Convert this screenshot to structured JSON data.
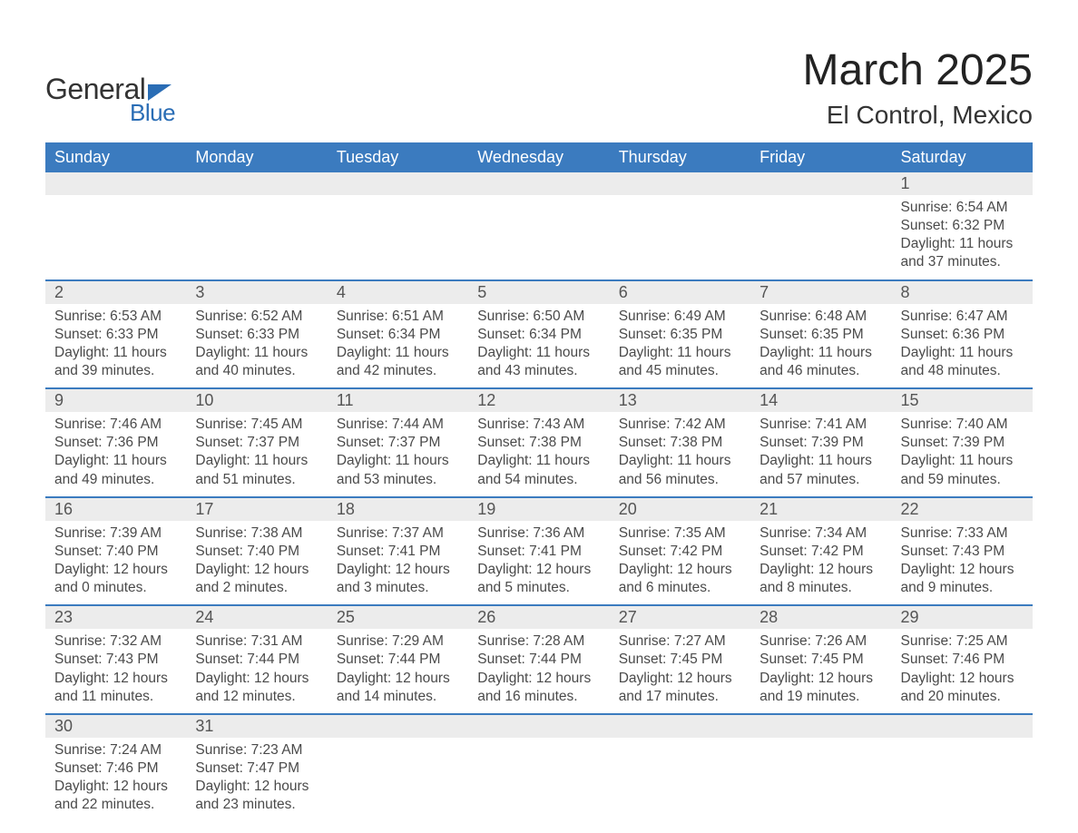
{
  "brand": {
    "general": "General",
    "blue": "Blue"
  },
  "title": {
    "month": "March 2025",
    "location": "El Control, Mexico"
  },
  "colors": {
    "header_bg": "#3b7bbf",
    "header_text": "#ffffff",
    "daynum_bg": "#ececec",
    "body_text": "#4a4a4a",
    "rule": "#3b7bbf",
    "brand_blue": "#2a6db5"
  },
  "days": [
    "Sunday",
    "Monday",
    "Tuesday",
    "Wednesday",
    "Thursday",
    "Friday",
    "Saturday"
  ],
  "weeks": [
    [
      null,
      null,
      null,
      null,
      null,
      null,
      {
        "n": "1",
        "sr": "6:54 AM",
        "ss": "6:32 PM",
        "dh": "11",
        "dm": "37"
      }
    ],
    [
      {
        "n": "2",
        "sr": "6:53 AM",
        "ss": "6:33 PM",
        "dh": "11",
        "dm": "39"
      },
      {
        "n": "3",
        "sr": "6:52 AM",
        "ss": "6:33 PM",
        "dh": "11",
        "dm": "40"
      },
      {
        "n": "4",
        "sr": "6:51 AM",
        "ss": "6:34 PM",
        "dh": "11",
        "dm": "42"
      },
      {
        "n": "5",
        "sr": "6:50 AM",
        "ss": "6:34 PM",
        "dh": "11",
        "dm": "43"
      },
      {
        "n": "6",
        "sr": "6:49 AM",
        "ss": "6:35 PM",
        "dh": "11",
        "dm": "45"
      },
      {
        "n": "7",
        "sr": "6:48 AM",
        "ss": "6:35 PM",
        "dh": "11",
        "dm": "46"
      },
      {
        "n": "8",
        "sr": "6:47 AM",
        "ss": "6:36 PM",
        "dh": "11",
        "dm": "48"
      }
    ],
    [
      {
        "n": "9",
        "sr": "7:46 AM",
        "ss": "7:36 PM",
        "dh": "11",
        "dm": "49"
      },
      {
        "n": "10",
        "sr": "7:45 AM",
        "ss": "7:37 PM",
        "dh": "11",
        "dm": "51"
      },
      {
        "n": "11",
        "sr": "7:44 AM",
        "ss": "7:37 PM",
        "dh": "11",
        "dm": "53"
      },
      {
        "n": "12",
        "sr": "7:43 AM",
        "ss": "7:38 PM",
        "dh": "11",
        "dm": "54"
      },
      {
        "n": "13",
        "sr": "7:42 AM",
        "ss": "7:38 PM",
        "dh": "11",
        "dm": "56"
      },
      {
        "n": "14",
        "sr": "7:41 AM",
        "ss": "7:39 PM",
        "dh": "11",
        "dm": "57"
      },
      {
        "n": "15",
        "sr": "7:40 AM",
        "ss": "7:39 PM",
        "dh": "11",
        "dm": "59"
      }
    ],
    [
      {
        "n": "16",
        "sr": "7:39 AM",
        "ss": "7:40 PM",
        "dh": "12",
        "dm": "0"
      },
      {
        "n": "17",
        "sr": "7:38 AM",
        "ss": "7:40 PM",
        "dh": "12",
        "dm": "2"
      },
      {
        "n": "18",
        "sr": "7:37 AM",
        "ss": "7:41 PM",
        "dh": "12",
        "dm": "3"
      },
      {
        "n": "19",
        "sr": "7:36 AM",
        "ss": "7:41 PM",
        "dh": "12",
        "dm": "5"
      },
      {
        "n": "20",
        "sr": "7:35 AM",
        "ss": "7:42 PM",
        "dh": "12",
        "dm": "6"
      },
      {
        "n": "21",
        "sr": "7:34 AM",
        "ss": "7:42 PM",
        "dh": "12",
        "dm": "8"
      },
      {
        "n": "22",
        "sr": "7:33 AM",
        "ss": "7:43 PM",
        "dh": "12",
        "dm": "9"
      }
    ],
    [
      {
        "n": "23",
        "sr": "7:32 AM",
        "ss": "7:43 PM",
        "dh": "12",
        "dm": "11"
      },
      {
        "n": "24",
        "sr": "7:31 AM",
        "ss": "7:44 PM",
        "dh": "12",
        "dm": "12"
      },
      {
        "n": "25",
        "sr": "7:29 AM",
        "ss": "7:44 PM",
        "dh": "12",
        "dm": "14"
      },
      {
        "n": "26",
        "sr": "7:28 AM",
        "ss": "7:44 PM",
        "dh": "12",
        "dm": "16"
      },
      {
        "n": "27",
        "sr": "7:27 AM",
        "ss": "7:45 PM",
        "dh": "12",
        "dm": "17"
      },
      {
        "n": "28",
        "sr": "7:26 AM",
        "ss": "7:45 PM",
        "dh": "12",
        "dm": "19"
      },
      {
        "n": "29",
        "sr": "7:25 AM",
        "ss": "7:46 PM",
        "dh": "12",
        "dm": "20"
      }
    ],
    [
      {
        "n": "30",
        "sr": "7:24 AM",
        "ss": "7:46 PM",
        "dh": "12",
        "dm": "22"
      },
      {
        "n": "31",
        "sr": "7:23 AM",
        "ss": "7:47 PM",
        "dh": "12",
        "dm": "23"
      },
      null,
      null,
      null,
      null,
      null
    ]
  ],
  "labels": {
    "sunrise": "Sunrise: ",
    "sunset": "Sunset: ",
    "daylight1": "Daylight: ",
    "hours": " hours",
    "and": "and ",
    "minutes": " minutes."
  }
}
